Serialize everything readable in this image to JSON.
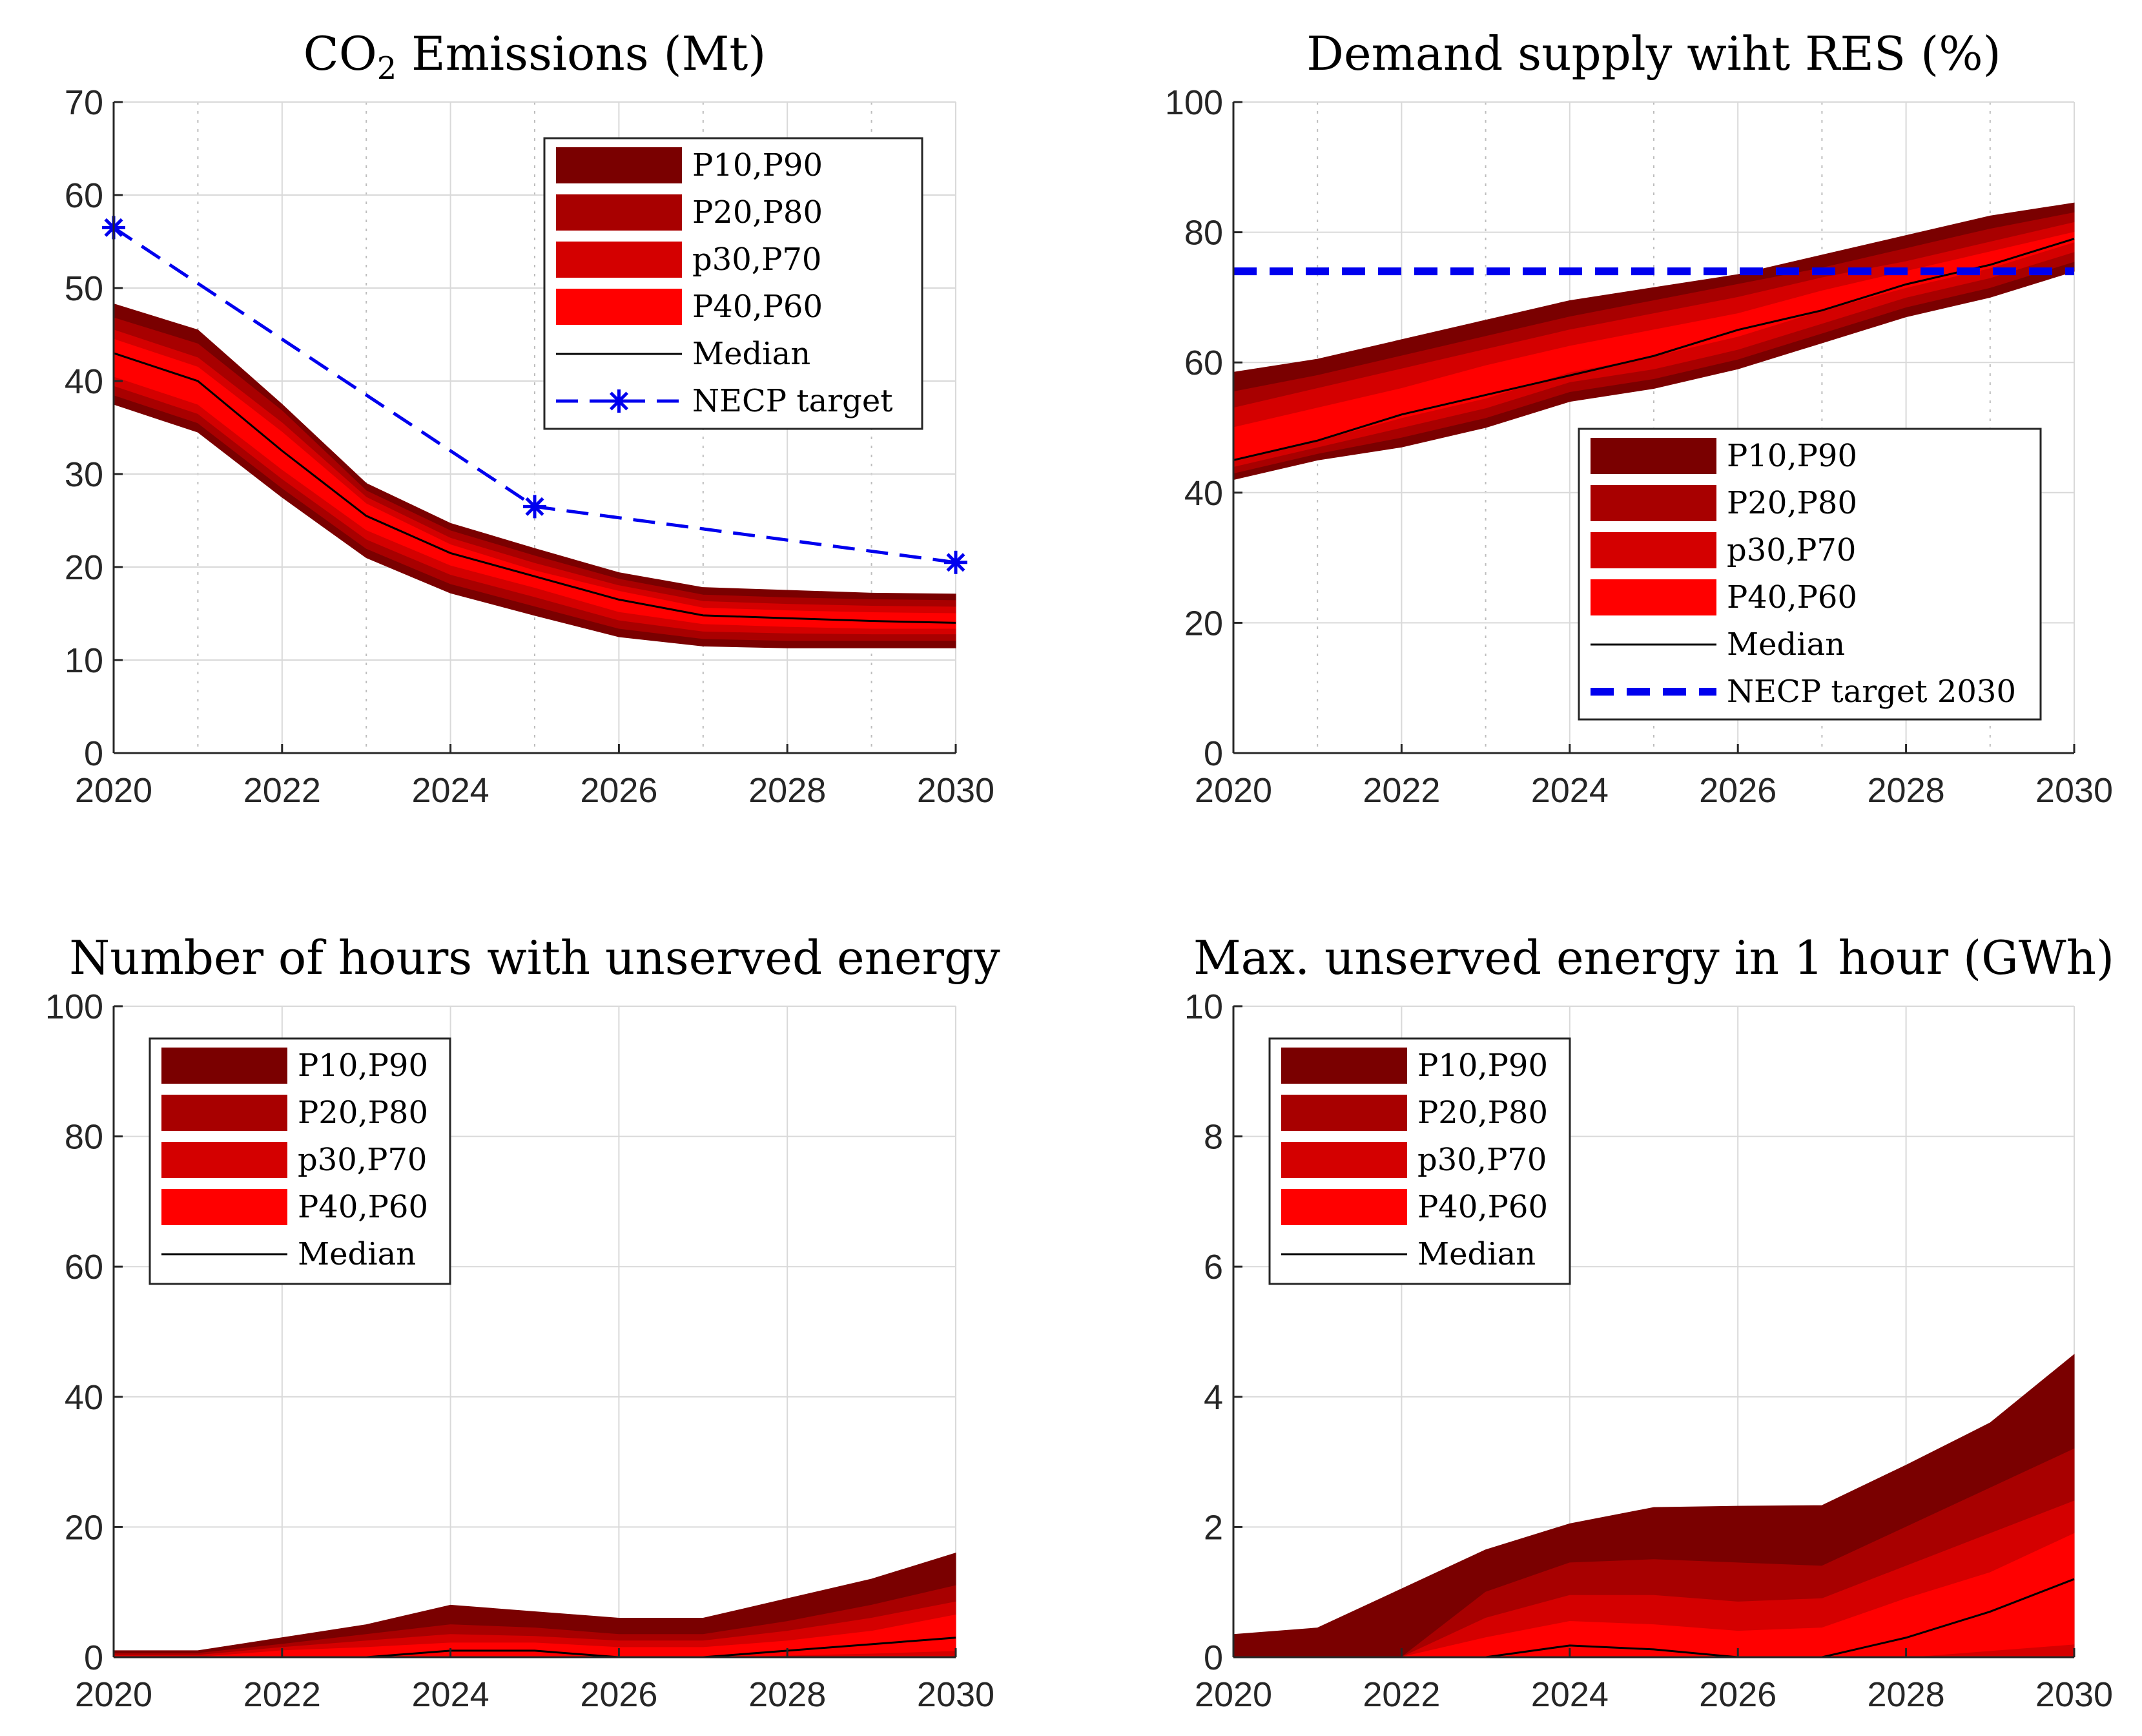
{
  "colors": {
    "band_10_90": "#7a0000",
    "band_20_80": "#a80000",
    "band_30_70": "#d40000",
    "band_40_60": "#ff0000",
    "median": "#000000",
    "target": "#0000ee"
  },
  "chart_data": [
    {
      "type": "area",
      "title_main": "CO",
      "title_sub": "2",
      "title_rest": " Emissions (Mt)",
      "x": [
        2020,
        2021,
        2022,
        2023,
        2024,
        2025,
        2026,
        2027,
        2028,
        2029,
        2030
      ],
      "xlim": [
        2020,
        2030
      ],
      "ylim": [
        0,
        70
      ],
      "xticks": [
        2020,
        2022,
        2024,
        2026,
        2028,
        2030
      ],
      "yticks": [
        0,
        10,
        20,
        30,
        40,
        50,
        60,
        70
      ],
      "minor_x": true,
      "legend_position": "top-right",
      "legend": [
        "P10,P90",
        "P20,P80",
        "p30,P70",
        "P40,P60",
        "Median",
        "NECP target"
      ],
      "bands": {
        "p10": [
          37.5,
          34.5,
          27.5,
          21,
          17.2,
          14.8,
          12.5,
          11.5,
          11.3,
          11.3,
          11.3
        ],
        "p20": [
          38.5,
          35.5,
          28.5,
          22,
          18.2,
          15.8,
          13.4,
          12.3,
          12.1,
          12.1,
          12.1
        ],
        "p30": [
          39.5,
          36.5,
          29.5,
          23,
          19.2,
          16.8,
          14.3,
          13.1,
          12.9,
          12.8,
          12.8
        ],
        "p40": [
          40.5,
          37.5,
          30.5,
          24,
          20.2,
          17.8,
          15.2,
          13.9,
          13.6,
          13.4,
          13.4
        ],
        "p60": [
          44.5,
          41.5,
          34.5,
          26.8,
          22.4,
          19.6,
          17.4,
          15.6,
          15.3,
          15.1,
          15
        ],
        "p70": [
          45.5,
          42.5,
          35.5,
          27.5,
          23.1,
          20.4,
          18,
          16.3,
          16,
          15.8,
          15.7
        ],
        "p80": [
          46.8,
          44,
          36.8,
          28.2,
          23.9,
          21.2,
          18.7,
          17,
          16.7,
          16.5,
          16.4
        ],
        "p90": [
          48.3,
          45.5,
          37.5,
          29,
          24.7,
          22,
          19.4,
          17.8,
          17.5,
          17.2,
          17.1
        ],
        "median": [
          43,
          40,
          32.5,
          25.5,
          21.5,
          19,
          16.5,
          14.8,
          14.5,
          14.2,
          14
        ]
      },
      "target": {
        "style": "dash-star",
        "x": [
          2020,
          2025,
          2030
        ],
        "y": [
          56.5,
          26.5,
          20.5
        ]
      }
    },
    {
      "type": "area",
      "title_main": "Demand supply wiht RES (%)",
      "x": [
        2020,
        2021,
        2022,
        2023,
        2024,
        2025,
        2026,
        2027,
        2028,
        2029,
        2030
      ],
      "xlim": [
        2020,
        2030
      ],
      "ylim": [
        0,
        100
      ],
      "xticks": [
        2020,
        2022,
        2024,
        2026,
        2028,
        2030
      ],
      "yticks": [
        0,
        20,
        40,
        60,
        80,
        100
      ],
      "minor_x": true,
      "legend_position": "bottom-right",
      "legend": [
        "P10,P90",
        "P20,P80",
        "p30,P70",
        "P40,P60",
        "Median",
        "NECP target 2030"
      ],
      "bands": {
        "p10": [
          42,
          45,
          47,
          50,
          54,
          56,
          59,
          63,
          67,
          70,
          74
        ],
        "p20": [
          43,
          46,
          48.5,
          51.5,
          55.5,
          57.5,
          60.5,
          64.5,
          68.5,
          71.5,
          75.5
        ],
        "p30": [
          44,
          47,
          50,
          53,
          57,
          59,
          62,
          66,
          70,
          73,
          77
        ],
        "p40": [
          45,
          48,
          51.5,
          54.5,
          58.5,
          61,
          64,
          68,
          71.5,
          74.5,
          78.5
        ],
        "p60": [
          50,
          53,
          56,
          59.5,
          62.5,
          65,
          67.5,
          71,
          74,
          77,
          80
        ],
        "p70": [
          53,
          56,
          59,
          62,
          65,
          67.5,
          70,
          73,
          75.5,
          78.5,
          81.5
        ],
        "p80": [
          55.5,
          58,
          61,
          64,
          67,
          69.5,
          72,
          74.5,
          77.5,
          80.5,
          83
        ],
        "p90": [
          58.5,
          60.5,
          63.5,
          66.5,
          69.5,
          71.5,
          73.5,
          76.5,
          79.5,
          82.5,
          84.5
        ],
        "median": [
          45,
          48,
          52,
          55,
          58,
          61,
          65,
          68,
          72,
          75,
          79
        ]
      },
      "target": {
        "style": "thick-dash",
        "x": [
          2020,
          2030
        ],
        "y": [
          74,
          74
        ]
      }
    },
    {
      "type": "area",
      "title_main": "Number of hours with unserved energy",
      "x": [
        2020,
        2021,
        2022,
        2023,
        2024,
        2025,
        2026,
        2027,
        2028,
        2029,
        2030
      ],
      "xlim": [
        2020,
        2030
      ],
      "ylim": [
        0,
        100
      ],
      "xticks": [
        2020,
        2022,
        2024,
        2026,
        2028,
        2030
      ],
      "yticks": [
        0,
        20,
        40,
        60,
        80,
        100
      ],
      "minor_x": false,
      "legend_position": "top-left",
      "legend": [
        "P10,P90",
        "P20,P80",
        "p30,P70",
        "P40,P60",
        "Median"
      ],
      "bands": {
        "p10": [
          0,
          0,
          0,
          0,
          0,
          0,
          0,
          0,
          0,
          0,
          0
        ],
        "p20": [
          0,
          0,
          0,
          0,
          0,
          0,
          0,
          0,
          0,
          0,
          0
        ],
        "p30": [
          0,
          0,
          0,
          0,
          0,
          0,
          0,
          0,
          0,
          0,
          0
        ],
        "p40": [
          0,
          0,
          0,
          0,
          0.2,
          0.2,
          0,
          0,
          0.3,
          0.6,
          1
        ],
        "p60": [
          0,
          0,
          1,
          1.5,
          2.2,
          2.2,
          1.5,
          1.5,
          2.5,
          4,
          6.5
        ],
        "p70": [
          0.3,
          0.3,
          1.5,
          2.5,
          3.5,
          3.2,
          2.5,
          2.5,
          4,
          6,
          8.5
        ],
        "p80": [
          0.6,
          0.6,
          2,
          3.5,
          5,
          4.5,
          3.5,
          3.5,
          5.5,
          8,
          11
        ],
        "p90": [
          1,
          1,
          3,
          5,
          8,
          7,
          6,
          6,
          9,
          12,
          16
        ],
        "median": [
          0,
          0,
          0,
          0,
          1,
          1,
          0,
          0,
          1,
          2,
          3
        ]
      }
    },
    {
      "type": "area",
      "title_main": "Max. unserved energy in 1 hour (GWh)",
      "x": [
        2020,
        2021,
        2022,
        2023,
        2024,
        2025,
        2026,
        2027,
        2028,
        2029,
        2030
      ],
      "xlim": [
        2020,
        2030
      ],
      "ylim": [
        0,
        10
      ],
      "xticks": [
        2020,
        2022,
        2024,
        2026,
        2028,
        2030
      ],
      "yticks": [
        0,
        2,
        4,
        6,
        8,
        10
      ],
      "minor_x": false,
      "legend_position": "top-left",
      "legend": [
        "P10,P90",
        "P20,P80",
        "p30,P70",
        "P40,P60",
        "Median"
      ],
      "bands": {
        "p10": [
          0,
          0,
          0,
          0,
          0,
          0,
          0,
          0,
          0,
          0,
          0
        ],
        "p20": [
          0,
          0,
          0,
          0,
          0,
          0,
          0,
          0,
          0,
          0,
          0
        ],
        "p30": [
          0,
          0,
          0,
          0,
          0,
          0,
          0,
          0,
          0,
          0,
          0
        ],
        "p40": [
          0,
          0,
          0,
          0,
          0,
          0,
          0,
          0,
          0,
          0.1,
          0.2
        ],
        "p60": [
          0,
          0,
          0,
          0.3,
          0.55,
          0.5,
          0.4,
          0.45,
          0.9,
          1.3,
          1.9
        ],
        "p70": [
          0,
          0,
          0,
          0.6,
          0.95,
          0.95,
          0.85,
          0.9,
          1.4,
          1.9,
          2.4
        ],
        "p80": [
          0,
          0,
          0,
          1.0,
          1.45,
          1.5,
          1.45,
          1.4,
          2.0,
          2.6,
          3.2
        ],
        "p90": [
          0.35,
          0.45,
          1.05,
          1.65,
          2.05,
          2.3,
          2.32,
          2.33,
          2.95,
          3.6,
          4.65
        ],
        "median": [
          0,
          0,
          0,
          0,
          0.18,
          0.12,
          0,
          0,
          0.3,
          0.7,
          1.2
        ]
      }
    }
  ]
}
